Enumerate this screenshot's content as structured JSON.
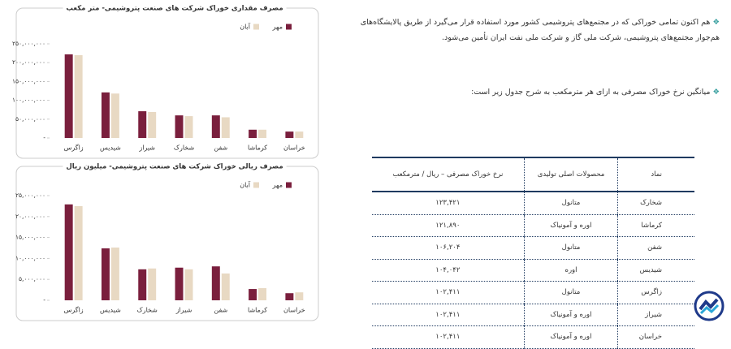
{
  "chart_data": [
    {
      "type": "bar",
      "title": "مصرف مقداری خوراک شرکت های صنعت پتروشیمی- متر مکعب",
      "categories": [
        "زاگرس",
        "شیدیس",
        "شیراز",
        "شخارک",
        "شفن",
        "کرماشا",
        "خراسان"
      ],
      "series": [
        {
          "name": "مهر",
          "color": "#7a1f3d",
          "values": [
            222,
            121,
            71,
            60,
            60,
            22,
            17
          ]
        },
        {
          "name": "آبان",
          "color": "#e8d9c3",
          "values": [
            220,
            118,
            69,
            58,
            55,
            22,
            17
          ]
        }
      ],
      "ylim": [
        0,
        250
      ],
      "yticks": [
        {
          "value": 0,
          "label": "-"
        },
        {
          "value": 50,
          "label": "۵۰,۰۰۰,۰۰۰"
        },
        {
          "value": 100,
          "label": "۱۰۰,۰۰۰,۰۰۰"
        },
        {
          "value": 150,
          "label": "۱۵۰,۰۰۰,۰۰۰"
        },
        {
          "value": 200,
          "label": "۲۰۰,۰۰۰,۰۰۰"
        },
        {
          "value": 250,
          "label": "۲۵۰,۰۰۰,۰۰۰"
        }
      ]
    },
    {
      "type": "bar",
      "title": "مصرف ریالی خوراک شرکت های صنعت پتروشیمی- میلیون ریال",
      "categories": [
        "زاگرس",
        "شیدیس",
        "شخارک",
        "شیراز",
        "شفن",
        "کرماشا",
        "خراسان"
      ],
      "series": [
        {
          "name": "مهر",
          "color": "#7a1f3d",
          "values": [
            22.9,
            12.4,
            7.4,
            7.8,
            8.1,
            2.7,
            1.7
          ]
        },
        {
          "name": "آبان",
          "color": "#e8d9c3",
          "values": [
            22.5,
            12.6,
            7.6,
            7.4,
            6.4,
            2.9,
            1.9
          ]
        }
      ],
      "ylim": [
        0,
        25
      ],
      "yticks": [
        {
          "value": 0,
          "label": "-"
        },
        {
          "value": 5,
          "label": "۵,۰۰۰,۰۰۰"
        },
        {
          "value": 10,
          "label": "۱۰,۰۰۰,۰۰۰"
        },
        {
          "value": 15,
          "label": "۱۵,۰۰۰,۰۰۰"
        },
        {
          "value": 20,
          "label": "۲۰,۰۰۰,۰۰۰"
        },
        {
          "value": 25,
          "label": "۲۵,۰۰۰,۰۰۰"
        }
      ]
    }
  ],
  "text": {
    "paragraph1": "هم اکنون تمامی خوراکی که در مجتمع‌های پتروشیمی کشور مورد استفاده قرار می‌گیرد از طریق پالایشگاه‌های هم‌جوار مجتمع‌های پتروشیمی، شرکت ملی گاز و شرکت ملی نفت ایران تأمین می‌شود.",
    "paragraph2": "میانگین نرخ خوراک مصرفی به ازای هر مترمکعب به شرح جدول زیر است:"
  },
  "table": {
    "header": [
      "نماد",
      "محصولات اصلی تولیدی",
      "نرخ خوراک مصرفی – ریال / مترمکعب"
    ],
    "rows": [
      [
        "شخارک",
        "متانول",
        "۱۲۳,۴۲۱"
      ],
      [
        "کرماشا",
        "اوره و آمونیاک",
        "۱۲۱,۸۹۰"
      ],
      [
        "شفن",
        "متانول",
        "۱۰۶,۲۰۴"
      ],
      [
        "شیدیس",
        "اوره",
        "۱۰۴,۰۴۲"
      ],
      [
        "زاگرس",
        "متانول",
        "۱۰۲,۴۱۱"
      ],
      [
        "شیراز",
        "اوره و آمونیاک",
        "۱۰۲,۴۱۱"
      ],
      [
        "خراسان",
        "اوره و آمونیاک",
        "۱۰۲,۴۱۱"
      ]
    ]
  }
}
